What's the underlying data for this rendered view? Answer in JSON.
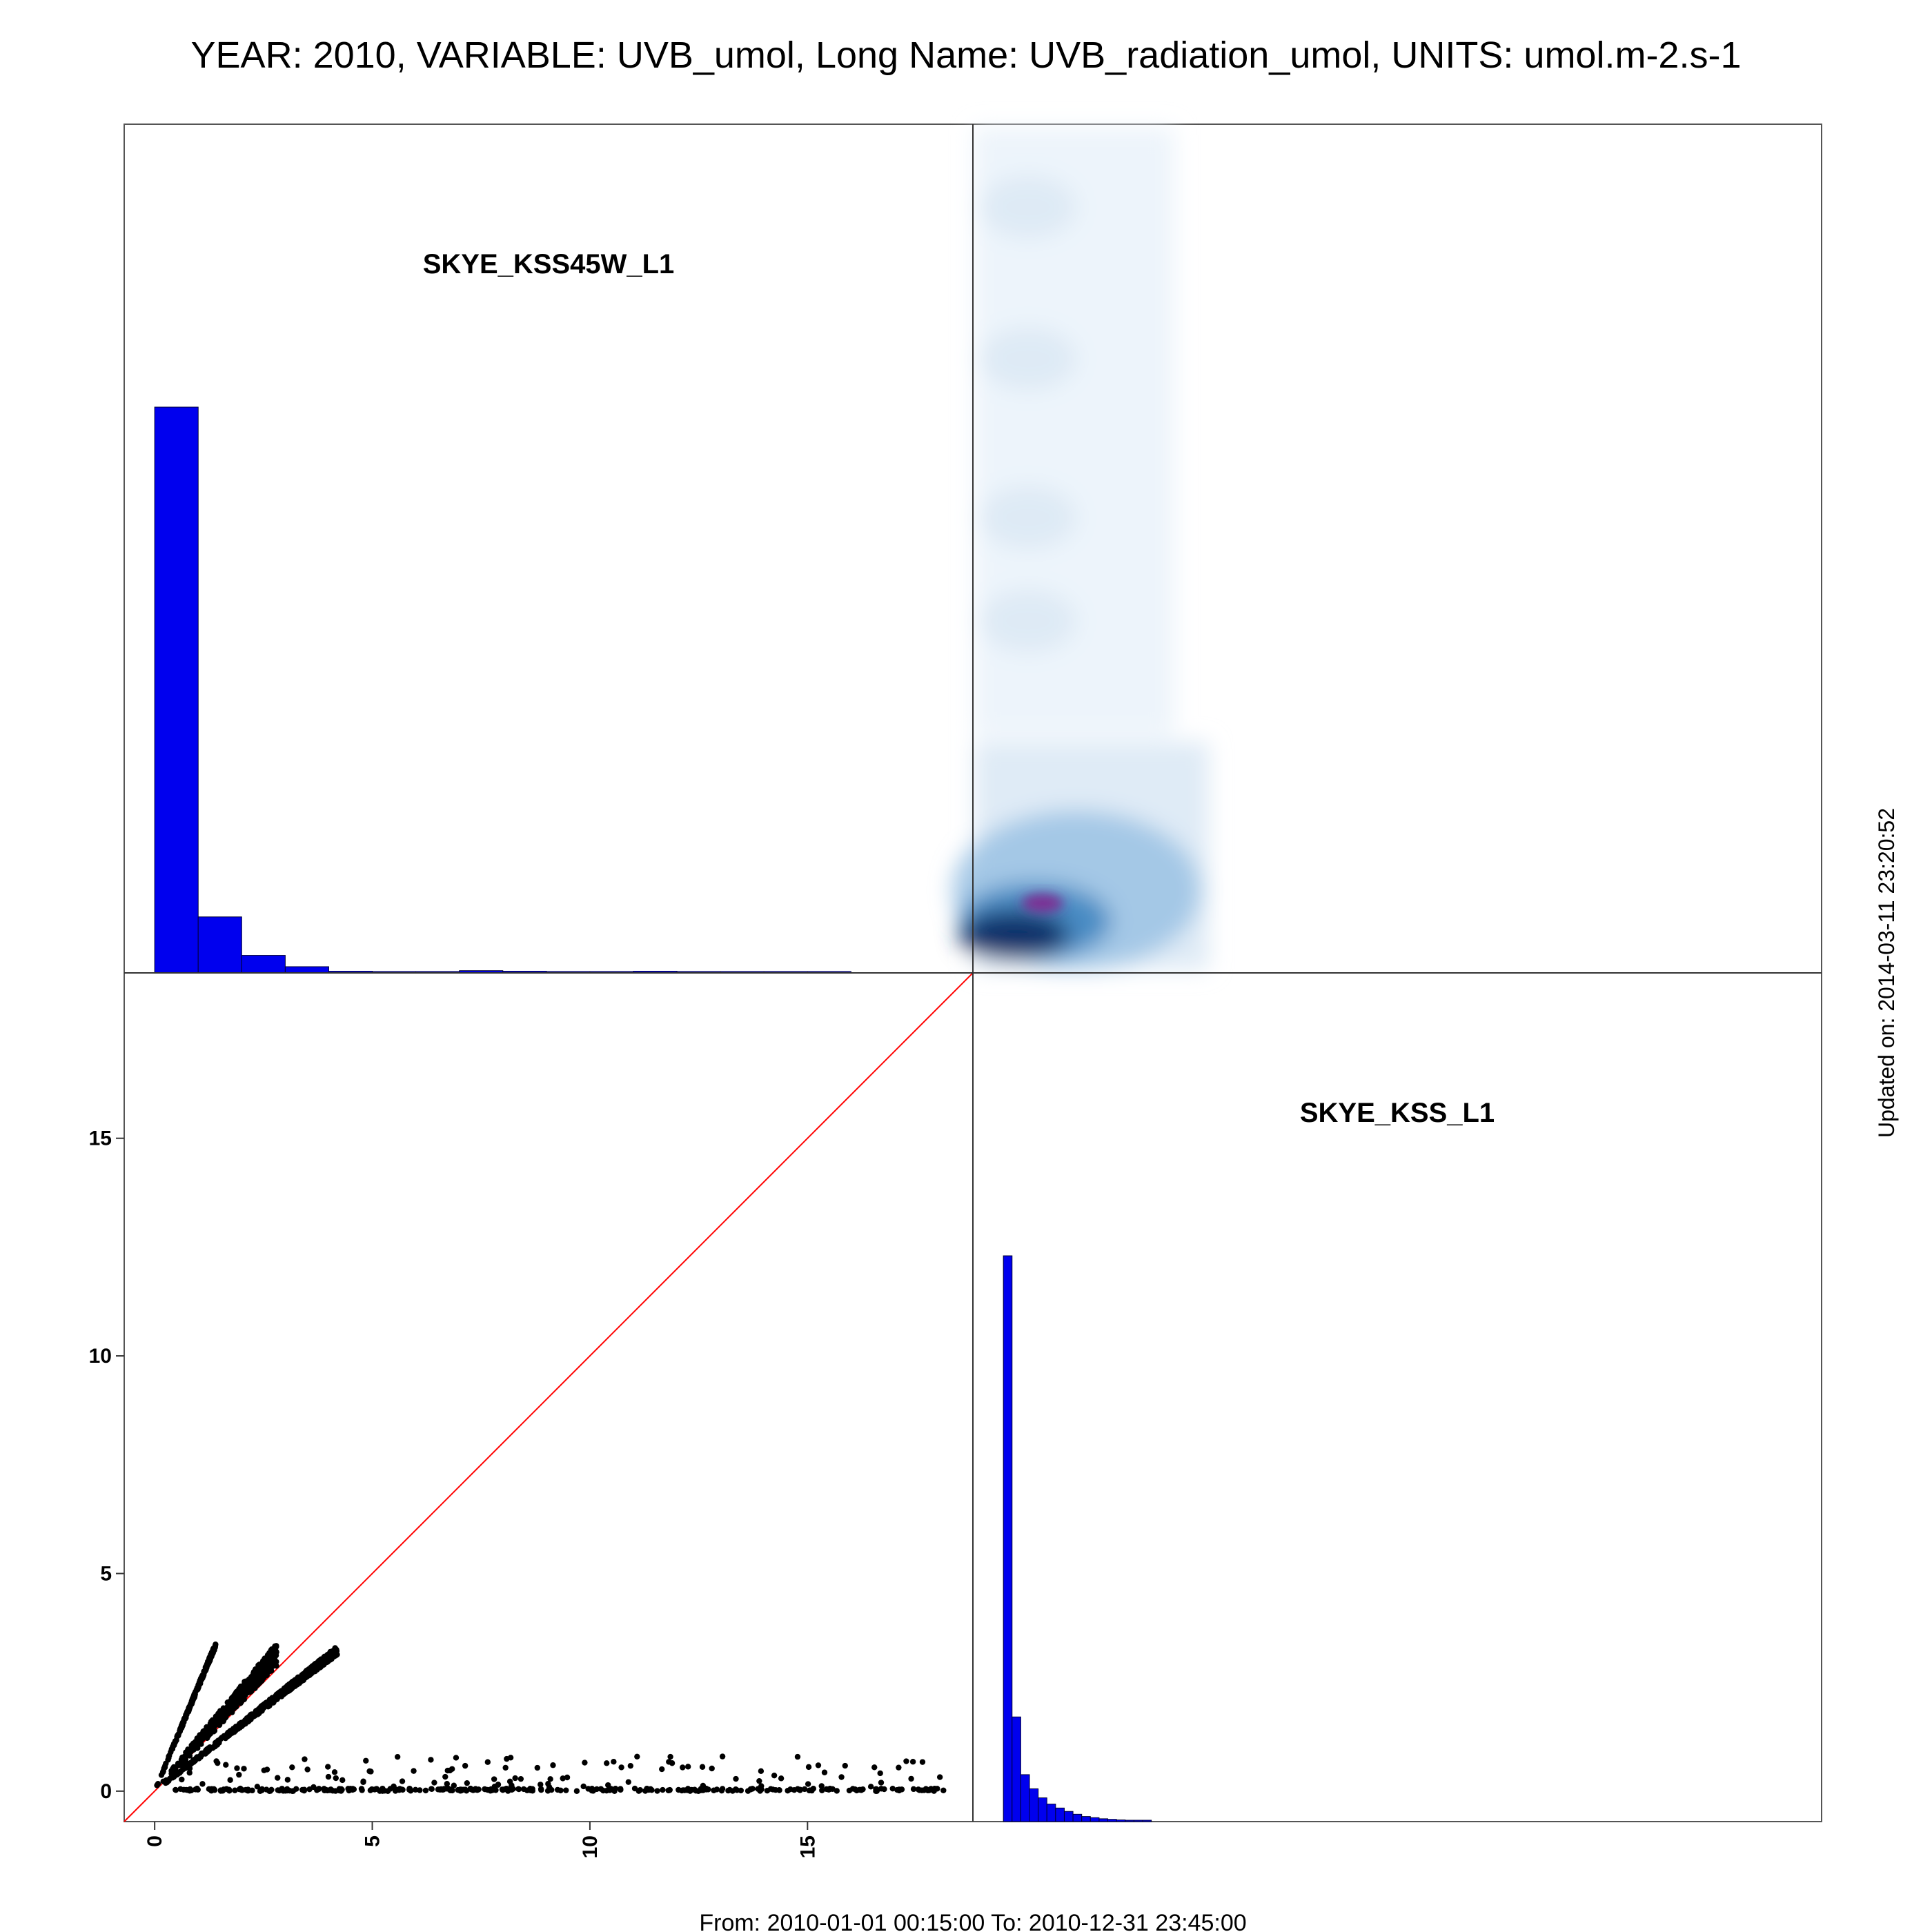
{
  "header": {
    "title": "YEAR: 2010, VARIABLE: UVB_umol, Long Name: UVB_radiation_umol, UNITS: umol.m-2.s-1"
  },
  "footer": {
    "period": "From: 2010-01-01 00:15:00 To: 2010-12-31 23:45:00",
    "updated": "Updated on: 2014-03-11 23:20:52"
  },
  "colors": {
    "histogram": "#0000ee",
    "identity_line": "#ff0000",
    "points": "#000000",
    "density_low": "#deebf7",
    "density_mid": "#4a8cc4",
    "density_high": "#08306b",
    "density_peak": "#7b3294"
  },
  "chart_data": [
    {
      "type": "bar",
      "panel": "top-left",
      "label": "SKYE_KSS45W_L1",
      "bin_width": 1,
      "x_range": [
        0,
        16
      ],
      "relative_counts": [
        1.0,
        0.099,
        0.031,
        0.011,
        0.003,
        0.002,
        0.002,
        0.004,
        0.003,
        0.002,
        0.002,
        0.003,
        0.002,
        0.002,
        0.002,
        0.002
      ]
    },
    {
      "type": "heatmap",
      "panel": "top-right",
      "description_type": "2d-density",
      "peak": {
        "x": 0.9,
        "y": 0.9
      }
    },
    {
      "type": "scatter",
      "panel": "bottom-left",
      "xlabel": "",
      "ylabel": "",
      "x_ticks": [
        "0",
        "5",
        "10",
        "15"
      ],
      "y_ticks": [
        "0",
        "5",
        "10",
        "15"
      ],
      "xlim": [
        -0.7,
        18.8
      ],
      "ylim": [
        -0.7,
        18.8
      ],
      "identity_line": true,
      "clusters": [
        {
          "x_range": [
            0,
            1.4
          ],
          "slope": 2.4,
          "count": 230,
          "spread": 0.06
        },
        {
          "x_range": [
            0,
            2.8
          ],
          "slope": 1.12,
          "count": 420,
          "spread": 0.18
        },
        {
          "x_range": [
            0,
            4.2
          ],
          "slope": 0.77,
          "count": 650,
          "spread": 0.05
        },
        {
          "x_range": [
            0.3,
            18.2
          ],
          "y_range": [
            0,
            0.8
          ],
          "count": 420,
          "kind": "near-zero-band"
        }
      ]
    },
    {
      "type": "bar",
      "panel": "bottom-right",
      "label": "SKYE_KSS_L1",
      "bin_width": 0.2,
      "x_range": [
        0,
        3.4
      ],
      "relative_counts": [
        1.0,
        0.185,
        0.083,
        0.058,
        0.042,
        0.031,
        0.024,
        0.018,
        0.013,
        0.009,
        0.007,
        0.005,
        0.004,
        0.003,
        0.002,
        0.002,
        0.001
      ]
    }
  ]
}
